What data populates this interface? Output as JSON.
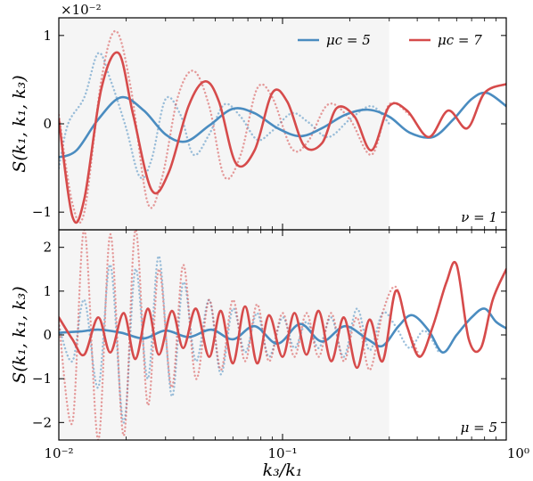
{
  "chart_data": [
    {
      "type": "line",
      "panel": "top",
      "xscale": "log",
      "xlim": [
        0.01,
        1
      ],
      "ylim": [
        -1.2,
        1.2
      ],
      "ylabel": "S(k₁, k₁, k₃)",
      "offset_label": "×10⁻²",
      "yticks": [
        "−1",
        "0",
        "1"
      ],
      "annotation": "ν = 1",
      "shaded_region": [
        0.01,
        0.3
      ],
      "legend": {
        "position": "top-right",
        "entries": [
          "μc = 5",
          "μc = 7"
        ]
      },
      "series": [
        {
          "name": "μc = 5",
          "color": "#4a8cc0",
          "style": "solid",
          "x": [
            0.01,
            0.012,
            0.015,
            0.019,
            0.024,
            0.03,
            0.037,
            0.047,
            0.06,
            0.075,
            0.095,
            0.12,
            0.15,
            0.19,
            0.24,
            0.3,
            0.37,
            0.47,
            0.58,
            0.7,
            0.82,
            1.0
          ],
          "y": [
            -0.38,
            -0.3,
            0.05,
            0.3,
            0.15,
            -0.12,
            -0.2,
            -0.02,
            0.17,
            0.12,
            -0.05,
            -0.14,
            -0.05,
            0.1,
            0.16,
            0.08,
            -0.1,
            -0.15,
            0.05,
            0.28,
            0.35,
            0.2
          ]
        },
        {
          "name": "μc = 7",
          "color": "#d64b4b",
          "style": "solid",
          "x": [
            0.01,
            0.0115,
            0.013,
            0.0155,
            0.0185,
            0.0215,
            0.026,
            0.031,
            0.038,
            0.045,
            0.052,
            0.062,
            0.075,
            0.09,
            0.105,
            0.125,
            0.15,
            0.175,
            0.21,
            0.25,
            0.3,
            0.36,
            0.45,
            0.55,
            0.67,
            0.8,
            1.0
          ],
          "y": [
            0.05,
            -1.05,
            -0.85,
            0.4,
            0.8,
            0.1,
            -0.75,
            -0.55,
            0.2,
            0.48,
            0.25,
            -0.45,
            -0.3,
            0.35,
            0.25,
            -0.25,
            -0.22,
            0.18,
            0.08,
            -0.3,
            0.2,
            0.15,
            -0.15,
            0.15,
            -0.05,
            0.35,
            0.45
          ]
        },
        {
          "name": "",
          "color": "#4a8cc0",
          "style": "dotted",
          "x": [
            0.01,
            0.011,
            0.013,
            0.015,
            0.017,
            0.02,
            0.023,
            0.026,
            0.03,
            0.035,
            0.04,
            0.047,
            0.055,
            0.065,
            0.077,
            0.09,
            0.11,
            0.13,
            0.16,
            0.2,
            0.25,
            0.3
          ],
          "y": [
            -0.5,
            0.0,
            0.3,
            0.8,
            0.5,
            -0.05,
            -0.6,
            -0.4,
            0.28,
            0.1,
            -0.35,
            -0.12,
            0.22,
            0.08,
            -0.18,
            -0.08,
            0.12,
            0.02,
            -0.15,
            0.05,
            0.2,
            0.0
          ]
        },
        {
          "name": "",
          "color": "#d64b4b",
          "style": "dotted",
          "x": [
            0.01,
            0.0115,
            0.013,
            0.0155,
            0.018,
            0.021,
            0.025,
            0.029,
            0.034,
            0.04,
            0.047,
            0.055,
            0.065,
            0.077,
            0.09,
            0.11,
            0.13,
            0.16,
            0.2,
            0.25,
            0.3,
            0.37
          ],
          "y": [
            0.1,
            -0.9,
            -1.0,
            0.5,
            1.05,
            0.4,
            -0.9,
            -0.6,
            0.3,
            0.6,
            0.2,
            -0.6,
            -0.35,
            0.4,
            0.3,
            -0.28,
            -0.2,
            0.22,
            0.05,
            -0.35,
            0.22,
            0.1
          ]
        }
      ]
    },
    {
      "type": "line",
      "panel": "bottom",
      "xscale": "log",
      "xlim": [
        0.01,
        1
      ],
      "ylim": [
        -2.4,
        2.4
      ],
      "xlabel": "k₃/k₁",
      "ylabel": "S(k₁, k₁, k₃)",
      "xticks": [
        "10⁻²",
        "10⁻¹",
        "10⁰"
      ],
      "yticks": [
        "−2",
        "−1",
        "0",
        "1",
        "2"
      ],
      "annotation": "μ = 5",
      "shaded_region": [
        0.01,
        0.3
      ],
      "series": [
        {
          "name": "μc = 5",
          "color": "#4a8cc0",
          "style": "solid",
          "x": [
            0.01,
            0.0125,
            0.015,
            0.019,
            0.024,
            0.03,
            0.038,
            0.048,
            0.06,
            0.075,
            0.095,
            0.12,
            0.15,
            0.19,
            0.24,
            0.28,
            0.33,
            0.38,
            0.45,
            0.52,
            0.6,
            0.7,
            0.8,
            0.9,
            1.0
          ],
          "y": [
            0.05,
            0.08,
            0.12,
            0.05,
            -0.08,
            0.1,
            -0.05,
            0.12,
            -0.1,
            0.2,
            -0.2,
            0.25,
            -0.15,
            0.2,
            -0.1,
            -0.25,
            0.2,
            0.45,
            0.1,
            -0.4,
            0.0,
            0.4,
            0.6,
            0.3,
            0.15
          ]
        },
        {
          "name": "μc = 7",
          "color": "#d64b4b",
          "style": "solid",
          "x": [
            0.01,
            0.0115,
            0.013,
            0.015,
            0.017,
            0.0195,
            0.022,
            0.025,
            0.028,
            0.032,
            0.036,
            0.041,
            0.047,
            0.053,
            0.06,
            0.068,
            0.077,
            0.087,
            0.1,
            0.113,
            0.128,
            0.145,
            0.165,
            0.188,
            0.215,
            0.245,
            0.28,
            0.32,
            0.36,
            0.41,
            0.47,
            0.54,
            0.6,
            0.68,
            0.77,
            0.87,
            1.0
          ],
          "y": [
            0.4,
            -0.1,
            -0.45,
            0.4,
            -0.4,
            0.5,
            -0.55,
            0.6,
            -0.45,
            0.55,
            -0.3,
            0.6,
            -0.5,
            0.55,
            -0.65,
            0.65,
            -0.65,
            0.45,
            -0.5,
            0.5,
            -0.45,
            0.55,
            -0.6,
            0.4,
            -0.75,
            0.35,
            -0.6,
            1.0,
            0.2,
            -0.5,
            0.2,
            1.2,
            1.6,
            -0.1,
            -0.3,
            0.8,
            1.5
          ]
        },
        {
          "name": "",
          "color": "#4a8cc0",
          "style": "dotted",
          "x": [
            0.01,
            0.0115,
            0.013,
            0.015,
            0.017,
            0.0195,
            0.022,
            0.025,
            0.028,
            0.032,
            0.036,
            0.041,
            0.047,
            0.053,
            0.06,
            0.068,
            0.077,
            0.087,
            0.1,
            0.113,
            0.128,
            0.145,
            0.165,
            0.188,
            0.215,
            0.245,
            0.28,
            0.32,
            0.37,
            0.43,
            0.5
          ],
          "y": [
            0.2,
            -0.6,
            0.8,
            -1.2,
            1.6,
            -2.0,
            1.5,
            -1.0,
            1.8,
            -1.4,
            1.2,
            -0.6,
            0.8,
            -0.9,
            0.6,
            -0.4,
            0.5,
            -0.5,
            0.4,
            -0.3,
            0.3,
            -0.3,
            0.4,
            -0.5,
            0.6,
            -0.35,
            0.5,
            0.2,
            -0.3,
            0.1,
            -0.4
          ]
        },
        {
          "name": "",
          "color": "#d64b4b",
          "style": "dotted",
          "x": [
            0.01,
            0.0115,
            0.013,
            0.015,
            0.017,
            0.0195,
            0.022,
            0.025,
            0.028,
            0.032,
            0.036,
            0.041,
            0.047,
            0.053,
            0.06,
            0.068,
            0.077,
            0.087,
            0.1,
            0.113,
            0.128,
            0.145,
            0.165,
            0.188,
            0.215,
            0.245,
            0.28,
            0.32,
            0.36,
            0.41
          ],
          "y": [
            0.3,
            -2.0,
            2.4,
            -2.4,
            2.3,
            -2.3,
            2.4,
            -1.6,
            1.5,
            -1.2,
            1.6,
            -1.0,
            0.8,
            -0.8,
            0.8,
            -0.6,
            0.7,
            -0.6,
            0.5,
            -0.5,
            0.5,
            -0.5,
            0.5,
            -0.6,
            0.4,
            -0.8,
            0.5,
            1.1,
            0.2,
            -0.5
          ]
        }
      ]
    }
  ]
}
